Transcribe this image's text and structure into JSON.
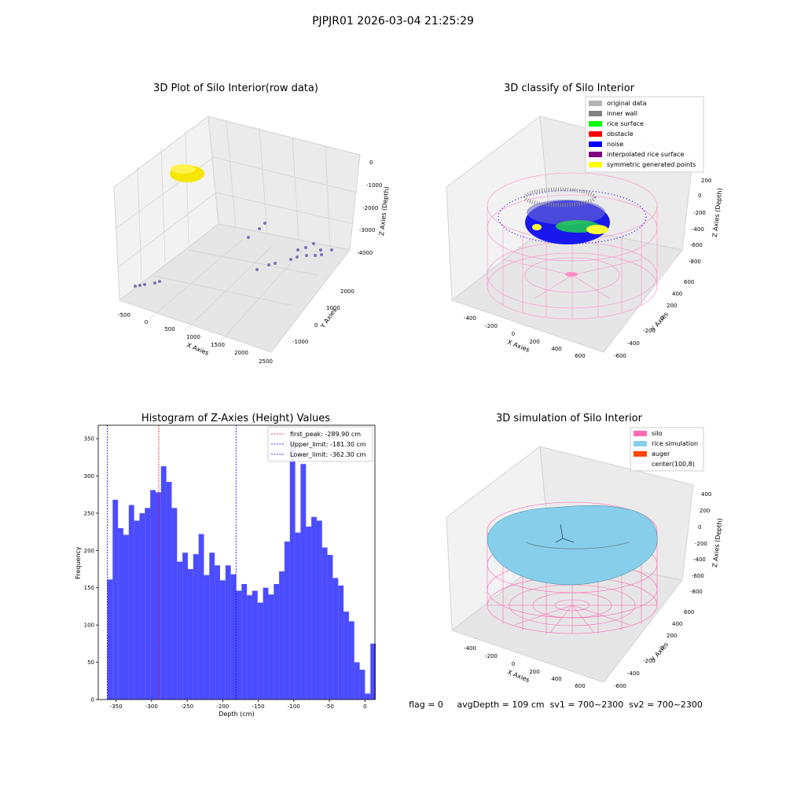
{
  "suptitle": "PJPJR01 2026-03-04 21:25:29",
  "status_text": "flag = 0     avgDepth = 109 cm  sv1 = 700~2300  sv2 = 700~2300",
  "panels": {
    "raw": {
      "title": "3D Plot of Silo Interior(row data)",
      "xlabel": "X Axies",
      "ylabel": "Y Axies",
      "zlabel": "Z Axies (Depth)",
      "x_ticks": [
        "-500",
        "0",
        "500",
        "1000",
        "1500",
        "2000",
        "2500"
      ],
      "y_ticks": [
        "-1000",
        "0",
        "1000",
        "2000"
      ],
      "z_ticks": [
        "0",
        "-1000",
        "-2000",
        "-3000",
        "-4000"
      ],
      "colors": {
        "points": "#7b74b6",
        "cluster": "#f5e600"
      }
    },
    "classify": {
      "title": "3D classify of Silo Interior",
      "xlabel": "X Axies",
      "ylabel": "Y Axies",
      "zlabel": "Z Axies (Depth)",
      "x_ticks": [
        "-400",
        "-200",
        "0",
        "200",
        "400",
        "600"
      ],
      "y_ticks": [
        "-600",
        "-400",
        "-200",
        "0",
        "200",
        "400",
        "600"
      ],
      "z_ticks": [
        "200",
        "0",
        "-200",
        "-400",
        "-600",
        "-800"
      ],
      "legend": [
        {
          "label": "original data",
          "color": "#b3b3b3"
        },
        {
          "label": "inner wall",
          "color": "#808080"
        },
        {
          "label": "rice surface",
          "color": "#00ff00"
        },
        {
          "label": "obstacle",
          "color": "#ff0000"
        },
        {
          "label": "noise",
          "color": "#0000ff"
        },
        {
          "label": "interpolated rice surface",
          "color": "#800080"
        },
        {
          "label": "symmetric generated points",
          "color": "#ffff00"
        }
      ]
    },
    "simulation": {
      "title": "3D simulation of Silo Interior",
      "xlabel": "X Axies",
      "ylabel": "Y Axies",
      "zlabel": "Z Axies (Depth)",
      "x_ticks": [
        "-400",
        "-200",
        "0",
        "200",
        "400",
        "600"
      ],
      "y_ticks": [
        "-600",
        "-400",
        "-200",
        "0",
        "200",
        "400",
        "600"
      ],
      "z_ticks": [
        "400",
        "200",
        "0",
        "-200",
        "-400",
        "-600",
        "-800"
      ],
      "legend": [
        {
          "label": "silo",
          "color": "#ff69b4"
        },
        {
          "label": "rice simulation",
          "color": "#87ceeb"
        },
        {
          "label": "auger",
          "color": "#ff4500"
        },
        {
          "label": "center(100,8)",
          "color": ""
        }
      ]
    }
  },
  "chart_data": {
    "type": "bar",
    "title": "Histogram of Z-Axies (Height) Values",
    "xlabel": "Depth (cm)",
    "ylabel": "Frequency",
    "xlim": [
      -375,
      14
    ],
    "ylim": [
      0,
      368
    ],
    "x_ticks": [
      -350,
      -300,
      -250,
      -200,
      -150,
      -100,
      -50,
      0
    ],
    "y_ticks": [
      0,
      50,
      100,
      150,
      200,
      250,
      300,
      350
    ],
    "bin_width": 7.55,
    "bin_start": -362.3,
    "bar_color": "#0000ff",
    "values": [
      161,
      268,
      230,
      221,
      261,
      240,
      250,
      257,
      281,
      278,
      313,
      292,
      257,
      185,
      197,
      175,
      195,
      222,
      167,
      197,
      180,
      160,
      180,
      168,
      146,
      155,
      140,
      146,
      130,
      150,
      141,
      155,
      172,
      212,
      347,
      224,
      316,
      232,
      245,
      240,
      204,
      194,
      163,
      153,
      118,
      105,
      50,
      40,
      8,
      75
    ],
    "lines": [
      {
        "label": "first_peak: -289.90 cm",
        "x": -289.9,
        "color": "#ff0000"
      },
      {
        "label": "Upper_limit: -181.30 cm",
        "x": -181.3,
        "color": "#0000ff"
      },
      {
        "label": "Lower_limit: -362.30 cm",
        "x": -362.3,
        "color": "#0000ff"
      }
    ],
    "legend_position": "top-right"
  }
}
